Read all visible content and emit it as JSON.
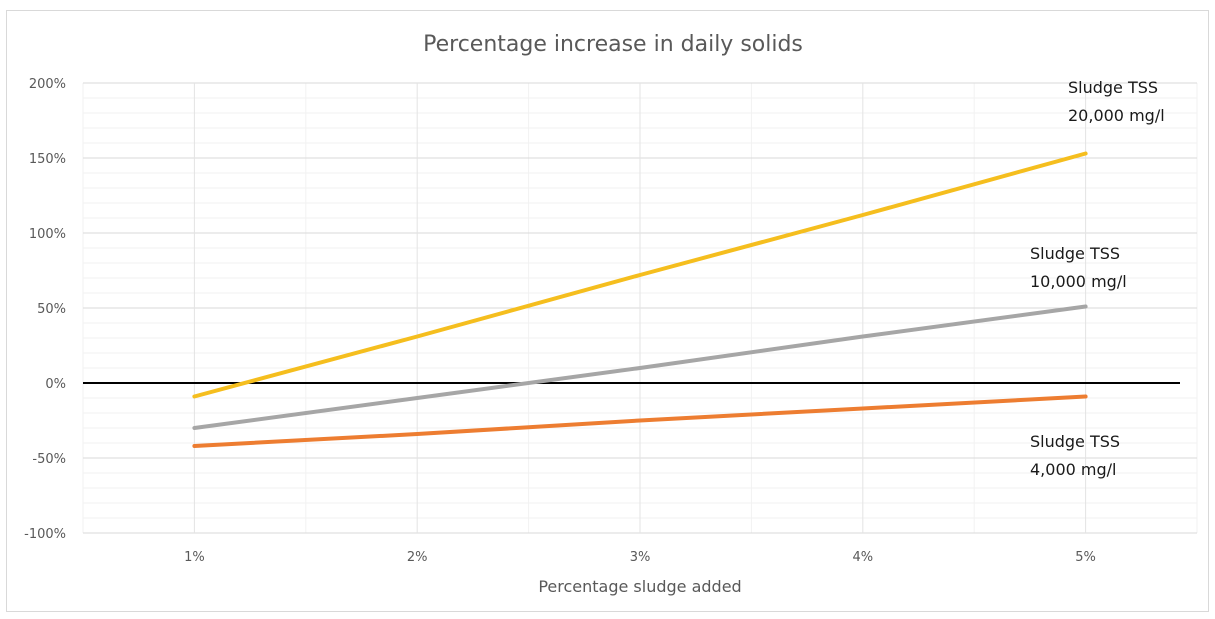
{
  "chart_data": {
    "type": "line",
    "title": "Percentage increase in daily solids",
    "xlabel": "Percentage sludge added",
    "ylabel": "",
    "categories": [
      "1%",
      "2%",
      "3%",
      "4%",
      "5%"
    ],
    "x": [
      1,
      2,
      3,
      4,
      5
    ],
    "xlim": [
      0.5,
      5.5
    ],
    "ylim": [
      -100,
      200
    ],
    "yticks": [
      -100,
      -50,
      0,
      50,
      100,
      150,
      200
    ],
    "ytick_labels": [
      "-100%",
      "-50%",
      "0%",
      "50%",
      "100%",
      "150%",
      "200%"
    ],
    "grid": true,
    "legend": "none",
    "zero_line_color": "#000000",
    "series": [
      {
        "values": [
          -9,
          31,
          72,
          112,
          153
        ],
        "color": "#f5be1e",
        "annotation": [
          "Sludge TSS",
          "20,000 mg/l"
        ]
      },
      {
        "values": [
          -30,
          -10,
          10,
          31,
          51
        ],
        "color": "#a6a6a6",
        "annotation": [
          "Sludge TSS",
          "10,000 mg/l"
        ]
      },
      {
        "values": [
          -42,
          -34,
          -25,
          -17,
          -9
        ],
        "color": "#ed7d31",
        "annotation": [
          "Sludge TSS",
          "4,000 mg/l"
        ]
      }
    ]
  }
}
